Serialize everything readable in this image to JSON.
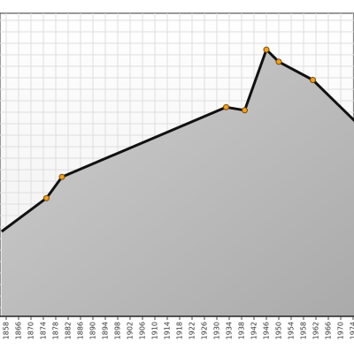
{
  "chart_data": {
    "type": "area",
    "title": "",
    "xlabel": "",
    "ylabel": "",
    "x_ticks": [
      "1858",
      "1866",
      "1870",
      "1874",
      "1878",
      "1882",
      "1886",
      "1890",
      "1894",
      "1898",
      "1902",
      "1906",
      "1910",
      "1914",
      "1918",
      "1922",
      "1926",
      "1930",
      "1934",
      "1938",
      "1942",
      "1946",
      "1950",
      "1954",
      "1958",
      "1962",
      "1966",
      "1970",
      "1974"
    ],
    "xlim": [
      1855,
      1975
    ],
    "ylim": [
      0,
      100
    ],
    "grid": true,
    "legend": "none",
    "series": [
      {
        "x": [
          1855,
          1875,
          1880,
          1933,
          1939,
          1946,
          1950,
          1961,
          1975
        ],
        "y": [
          28,
          39,
          46,
          69,
          68,
          88,
          84,
          78,
          64
        ],
        "markers": [
          false,
          true,
          true,
          true,
          true,
          true,
          true,
          true,
          false
        ]
      }
    ],
    "colors": {
      "line": "#111111",
      "marker_fill": "#f0a020",
      "marker_stroke": "#7a4a00",
      "area_top": "#cfcfcf",
      "area_bottom": "#aaaaaa",
      "grid": "#dedede",
      "bg_top": "#ffffff",
      "bg_bottom": "#efefef"
    }
  }
}
